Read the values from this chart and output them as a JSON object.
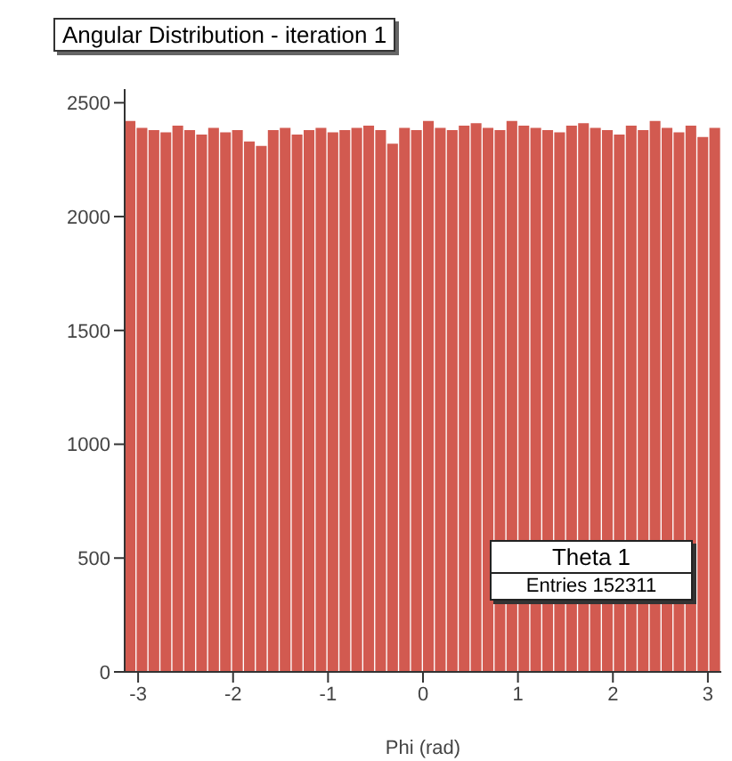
{
  "chart_data": {
    "type": "histogram",
    "title": "Angular Distribution - iteration 1",
    "xlabel": "Phi (rad)",
    "annotations": [
      "Theta 1",
      "Entries 152311"
    ],
    "color": "#d25a50",
    "bins": [
      -3.1416,
      -3.0159,
      -2.8903,
      -2.7646,
      -2.6389,
      -2.5133,
      -2.3876,
      -2.2619,
      -2.1363,
      -2.0106,
      -1.885,
      -1.7593,
      -1.6336,
      -1.508,
      -1.3823,
      -1.2566,
      -1.131,
      -1.0053,
      -0.8796,
      -0.754,
      -0.6283,
      -0.5027,
      -0.377,
      -0.2513,
      -0.1257,
      0,
      0.1257,
      0.2513,
      0.377,
      0.5027,
      0.6283,
      0.754,
      0.8796,
      1.0053,
      1.131,
      1.2566,
      1.3823,
      1.508,
      1.6336,
      1.7593,
      1.885,
      2.0106,
      2.1363,
      2.2619,
      2.3876,
      2.5133,
      2.6389,
      2.7646,
      2.8903,
      3.0159,
      3.1416
    ],
    "values": [
      2420,
      2390,
      2380,
      2370,
      2400,
      2380,
      2360,
      2390,
      2370,
      2380,
      2330,
      2310,
      2380,
      2390,
      2360,
      2380,
      2390,
      2370,
      2380,
      2390,
      2400,
      2380,
      2320,
      2390,
      2380,
      2420,
      2390,
      2380,
      2400,
      2410,
      2390,
      2380,
      2420,
      2400,
      2390,
      2380,
      2370,
      2400,
      2410,
      2390,
      2380,
      2360,
      2400,
      2380,
      2420,
      2390,
      2370,
      2400,
      2350,
      2390
    ],
    "xlim": [
      -3.1416,
      3.1416
    ],
    "xticks": [
      -3,
      -2,
      -1,
      0,
      1,
      2,
      3
    ],
    "ylim": [
      0,
      2560
    ],
    "yticks": [
      0,
      500,
      1000,
      1500,
      2000,
      2500
    ],
    "grid": false
  }
}
